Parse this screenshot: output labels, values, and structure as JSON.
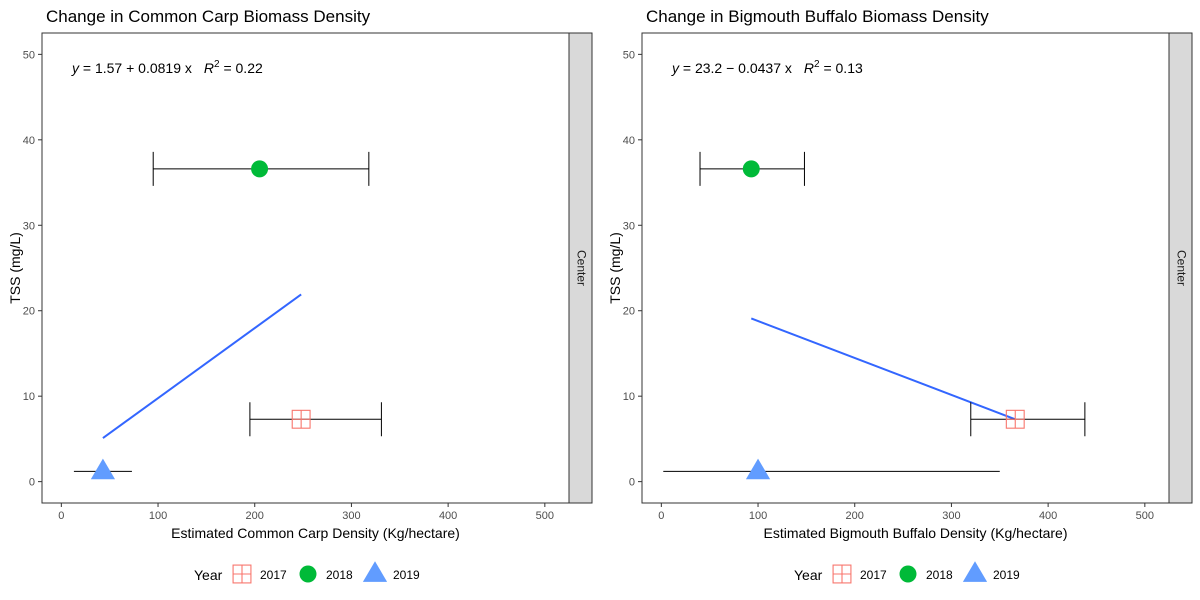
{
  "legend": {
    "title": "Year",
    "items": [
      {
        "label": "2017",
        "shape": "square-cross",
        "color": "#F8766D"
      },
      {
        "label": "2018",
        "shape": "circle",
        "color": "#00BA38"
      },
      {
        "label": "2019",
        "shape": "triangle",
        "color": "#619CFF"
      }
    ]
  },
  "colors": {
    "fit_line": "#3366FF",
    "strip_bg": "#D9D9D9",
    "errorbar": "#000000"
  },
  "chart_data": [
    {
      "type": "scatter",
      "title": "Change in Common Carp Biomass Density",
      "xlabel": "Estimated Common Carp Density (Kg/hectare)",
      "ylabel": "TSS (mg/L)",
      "xlim": [
        -20,
        525
      ],
      "ylim": [
        -2.5,
        52.5
      ],
      "xticks": [
        0,
        100,
        200,
        300,
        400,
        500
      ],
      "yticks": [
        0,
        10,
        20,
        30,
        40,
        50
      ],
      "facet_label": "Center",
      "equation": {
        "y_label": "y",
        "eq_rhs": "= 1.57 + 0.0819 x",
        "r2_label": "R",
        "r2_sup": "2",
        "r2_rhs": "= 0.22"
      },
      "points": [
        {
          "year": "2017",
          "x": 248,
          "y": 7.3,
          "xmin": 195,
          "xmax": 331
        },
        {
          "year": "2018",
          "x": 205,
          "y": 36.6,
          "xmin": 95,
          "xmax": 318
        },
        {
          "year": "2019",
          "x": 43,
          "y": 1.2,
          "xmin": 13,
          "xmax": 73
        }
      ],
      "fit": {
        "x": [
          43,
          248
        ],
        "y": [
          5.1,
          21.9
        ]
      },
      "grid": false
    },
    {
      "type": "scatter",
      "title": "Change in Bigmouth Buffalo Biomass Density",
      "xlabel": "Estimated Bigmouth Buffalo Density (Kg/hectare)",
      "ylabel": "TSS (mg/L)",
      "xlim": [
        -20,
        525
      ],
      "ylim": [
        -2.5,
        52.5
      ],
      "xticks": [
        0,
        100,
        200,
        300,
        400,
        500
      ],
      "yticks": [
        0,
        10,
        20,
        30,
        40,
        50
      ],
      "facet_label": "Center",
      "equation": {
        "y_label": "y",
        "eq_rhs": "= 23.2 − 0.0437 x",
        "r2_label": "R",
        "r2_sup": "2",
        "r2_rhs": "= 0.13"
      },
      "points": [
        {
          "year": "2017",
          "x": 366,
          "y": 7.3,
          "xmin": 320,
          "xmax": 438
        },
        {
          "year": "2018",
          "x": 93,
          "y": 36.6,
          "xmin": 40,
          "xmax": 148
        },
        {
          "year": "2019",
          "x": 100,
          "y": 1.2,
          "xmin": 2,
          "xmax": 350
        }
      ],
      "fit": {
        "x": [
          93,
          366
        ],
        "y": [
          19.1,
          7.3
        ]
      },
      "grid": false
    }
  ]
}
